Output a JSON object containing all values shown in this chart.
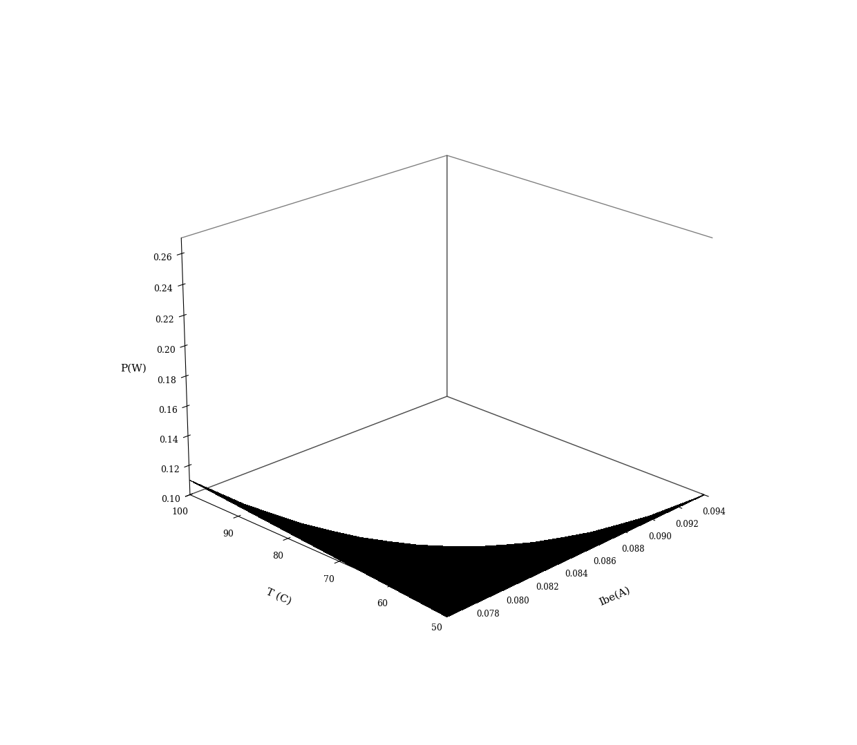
{
  "ibe_min": 0.076,
  "ibe_max": 0.094,
  "T_min": 50,
  "T_max": 100,
  "P_min": 0.1,
  "P_max": 0.27,
  "xlabel": "Ibe(A)",
  "ylabel": "T (C)",
  "zlabel": "P(W)",
  "surface_color": "#000000",
  "background_color": "#ffffff",
  "ibe_ticks": [
    0.078,
    0.08,
    0.082,
    0.084,
    0.086,
    0.088,
    0.09,
    0.092,
    0.094
  ],
  "T_ticks": [
    50,
    60,
    70,
    80,
    90,
    100
  ],
  "P_ticks": [
    0.1,
    0.12,
    0.14,
    0.16,
    0.18,
    0.2,
    0.22,
    0.24,
    0.26
  ],
  "elev": 22,
  "azim": -135,
  "a": -0.5431,
  "b": 8.594,
  "c": 0.01393,
  "d": -0.1833
}
